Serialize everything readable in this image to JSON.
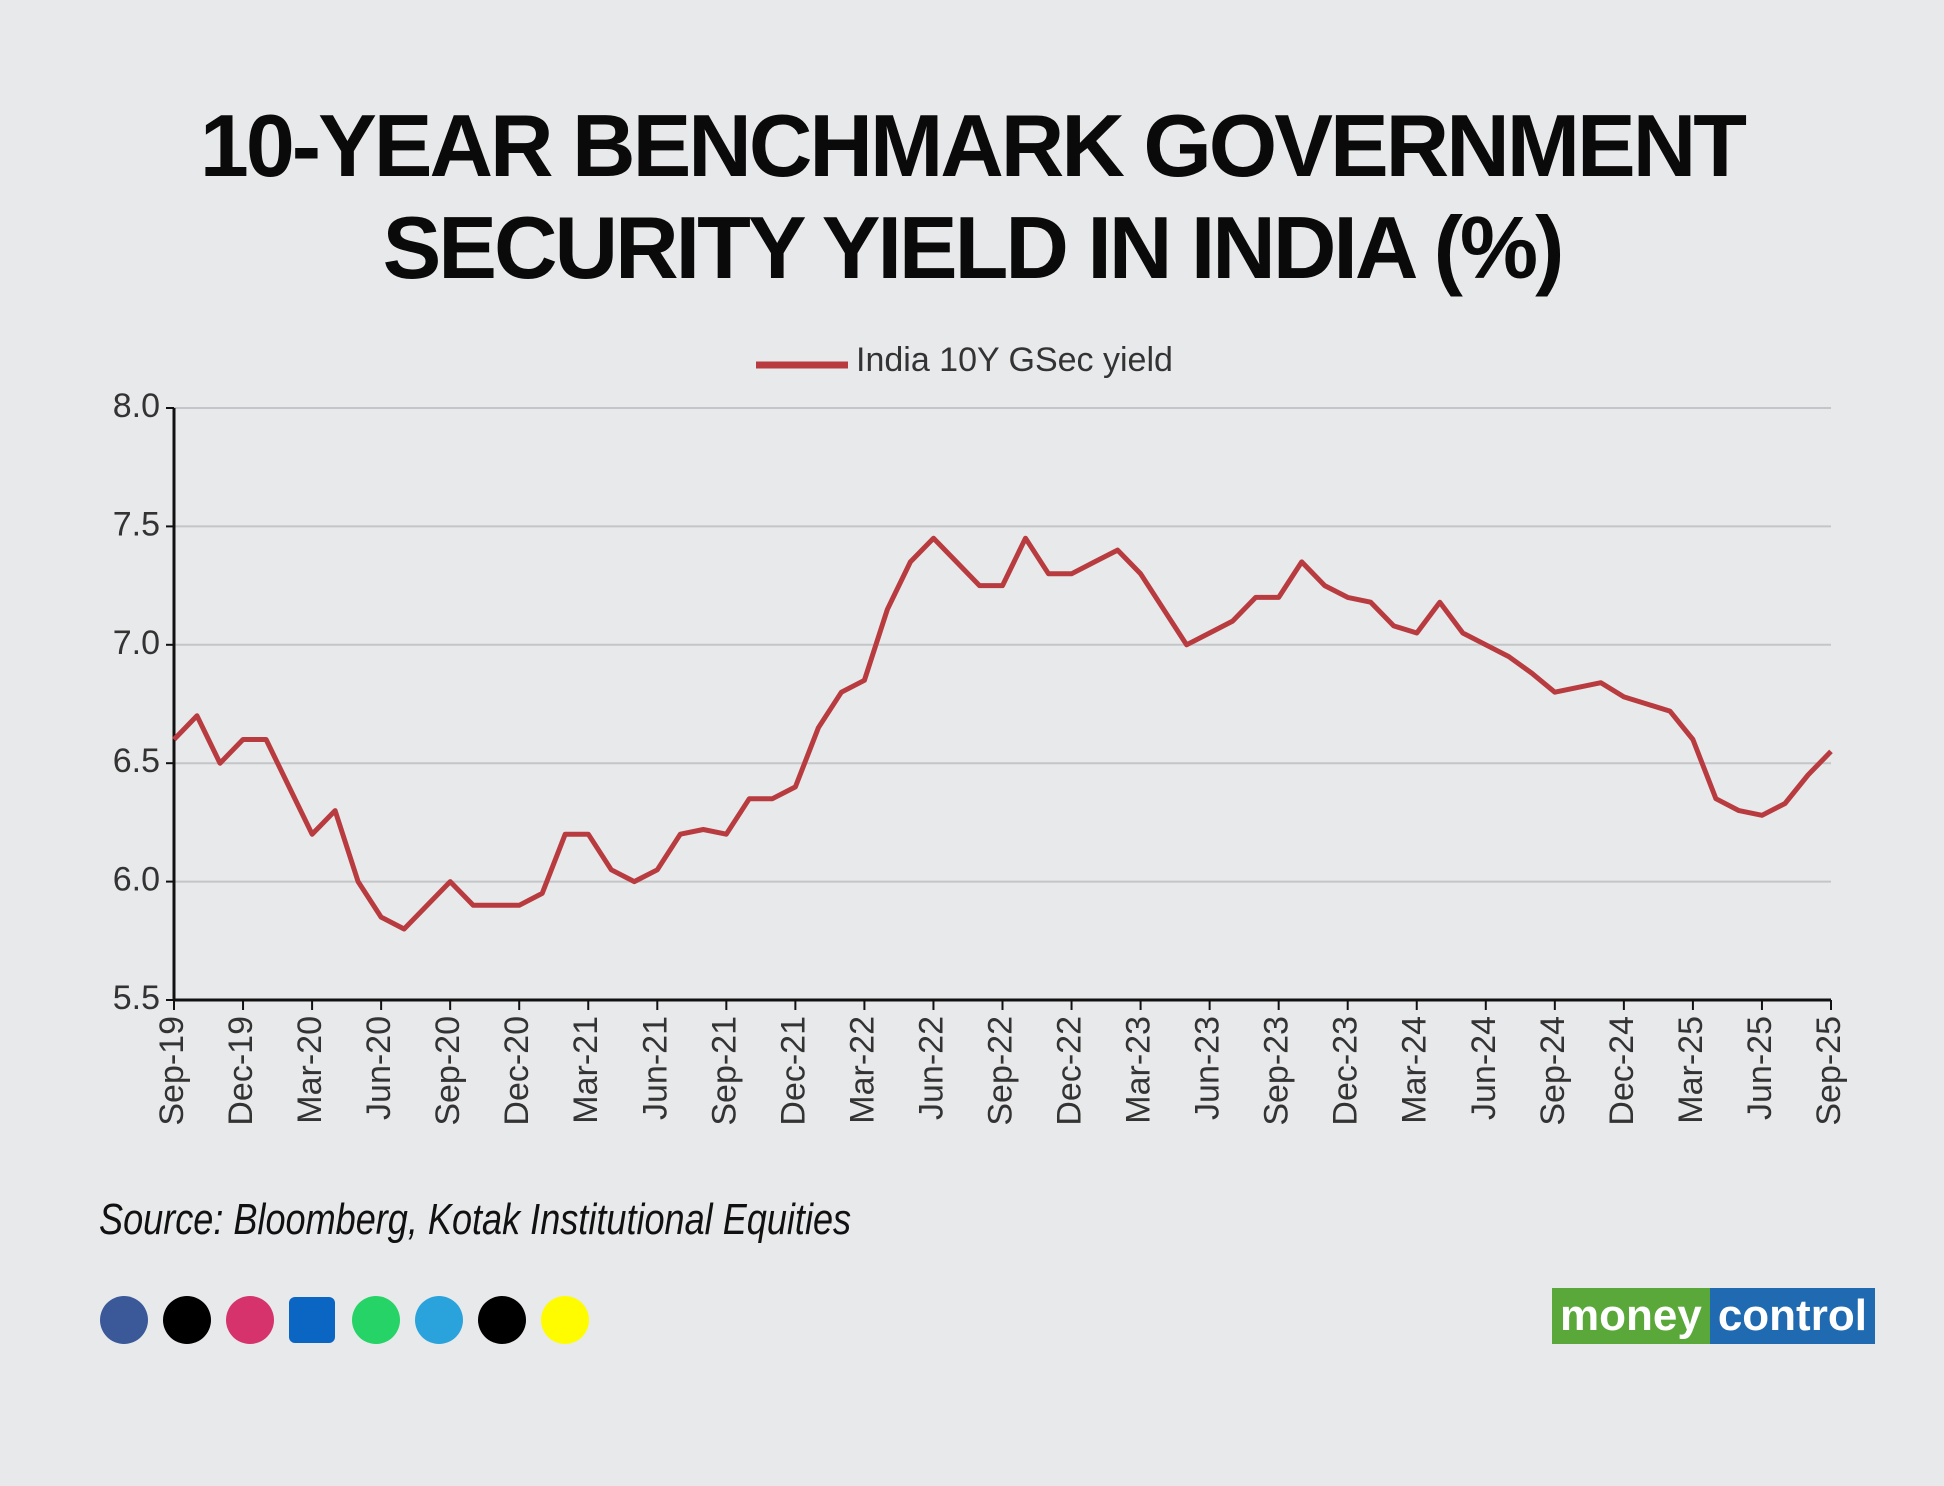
{
  "chart_data": {
    "type": "line",
    "title": "10-YEAR BENCHMARK GOVERNMENT SECURITY YIELD IN INDIA (%)",
    "categories": [
      "Sep-19",
      null,
      null,
      "Dec-19",
      null,
      null,
      "Mar-20",
      null,
      null,
      "Jun-20",
      null,
      null,
      "Sep-20",
      null,
      null,
      "Dec-20",
      null,
      null,
      "Mar-21",
      null,
      null,
      "Jun-21",
      null,
      null,
      "Sep-21",
      null,
      null,
      "Dec-21",
      null,
      null,
      "Mar-22",
      null,
      null,
      "Jun-22",
      null,
      null,
      "Sep-22",
      null,
      null,
      "Dec-22",
      null,
      null,
      "Mar-23",
      null,
      null,
      "Jun-23",
      null,
      null,
      "Sep-23",
      null,
      null,
      "Dec-23",
      null,
      null,
      "Mar-24",
      null,
      null,
      "Jun-24",
      null,
      null,
      "Sep-24",
      null,
      null,
      "Dec-24",
      null,
      null,
      "Mar-25",
      null,
      null,
      "Jun-25",
      null,
      null,
      "Sep-25"
    ],
    "series": [
      {
        "name": "India 10Y GSec yield",
        "color": "#b83c3f",
        "values": [
          6.6,
          6.7,
          6.5,
          6.6,
          6.6,
          6.4,
          6.2,
          6.3,
          6.0,
          5.85,
          5.8,
          5.9,
          6.0,
          5.9,
          5.9,
          5.9,
          5.95,
          6.2,
          6.2,
          6.05,
          6.0,
          6.05,
          6.2,
          6.22,
          6.2,
          6.35,
          6.35,
          6.4,
          6.65,
          6.8,
          6.85,
          7.15,
          7.35,
          7.45,
          7.35,
          7.25,
          7.25,
          7.45,
          7.3,
          7.3,
          7.35,
          7.4,
          7.3,
          7.15,
          7.0,
          7.05,
          7.1,
          7.2,
          7.2,
          7.35,
          7.25,
          7.2,
          7.18,
          7.08,
          7.05,
          7.18,
          7.05,
          7.0,
          6.95,
          6.88,
          6.8,
          6.82,
          6.84,
          6.78,
          6.75,
          6.72,
          6.6,
          6.35,
          6.3,
          6.28,
          6.33,
          6.45,
          6.55
        ]
      }
    ],
    "ylim": [
      5.5,
      8
    ],
    "yticks": [
      5.5,
      {
        "value": 6,
        "label": "6.0"
      },
      6.5,
      {
        "value": 7,
        "label": "7.0"
      },
      7.5,
      {
        "value": 8,
        "label": "8.0"
      }
    ],
    "grid": true,
    "legend": "top",
    "source": "Source: Bloomberg, Kotak Institutional Equities",
    "brand": [
      "money",
      "control"
    ]
  }
}
